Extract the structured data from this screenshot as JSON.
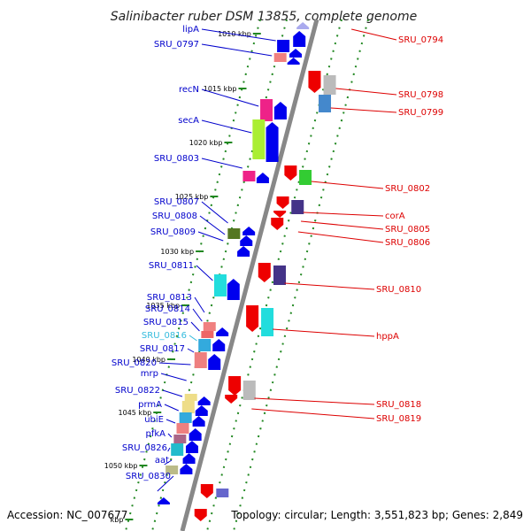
{
  "title": "Salinibacter ruber DSM 13855, complete genome",
  "footer": {
    "accession": "Accession: NC_007677",
    "info": "Topology: circular; Length: 3,551,823 bp; Genes: 2,849"
  },
  "colors": {
    "left_label": "#0000cc",
    "highlight_label": "#33bbdd",
    "right_label": "#dd0000",
    "backbone": "#888888",
    "tick": "#228822"
  },
  "kbp_ticks": [
    "1010 kbp",
    "1015 kbp",
    "1020 kbp",
    "1025 kbp",
    "1030 kbp",
    "1035 kbp",
    "1040 kbp",
    "1045 kbp",
    "1050 kbp",
    "kbp"
  ],
  "left_labels": [
    {
      "text": "lipA"
    },
    {
      "text": "SRU_0797"
    },
    {
      "text": "recN"
    },
    {
      "text": "secA"
    },
    {
      "text": "SRU_0803"
    },
    {
      "text": "SRU_0807"
    },
    {
      "text": "SRU_0808"
    },
    {
      "text": "SRU_0809"
    },
    {
      "text": "SRU_0811"
    },
    {
      "text": "SRU_0813"
    },
    {
      "text": "SRU_0814"
    },
    {
      "text": "SRU_0815"
    },
    {
      "text": "SRU_0816",
      "highlight": true
    },
    {
      "text": "SRU_0817"
    },
    {
      "text": "SRU_0820"
    },
    {
      "text": "mrp"
    },
    {
      "text": "SRU_0822"
    },
    {
      "text": "prmA"
    },
    {
      "text": "ubiE"
    },
    {
      "text": "pfkA"
    },
    {
      "text": "SRU_0826"
    },
    {
      "text": "aat"
    },
    {
      "text": "SRU_0830"
    }
  ],
  "right_labels": [
    {
      "text": "SRU_0794"
    },
    {
      "text": "SRU_0798"
    },
    {
      "text": "SRU_0799"
    },
    {
      "text": "SRU_0802"
    },
    {
      "text": "corA"
    },
    {
      "text": "SRU_0805"
    },
    {
      "text": "SRU_0806"
    },
    {
      "text": "SRU_0810"
    },
    {
      "text": "hppA"
    },
    {
      "text": "SRU_0818"
    },
    {
      "text": "SRU_0819"
    }
  ]
}
